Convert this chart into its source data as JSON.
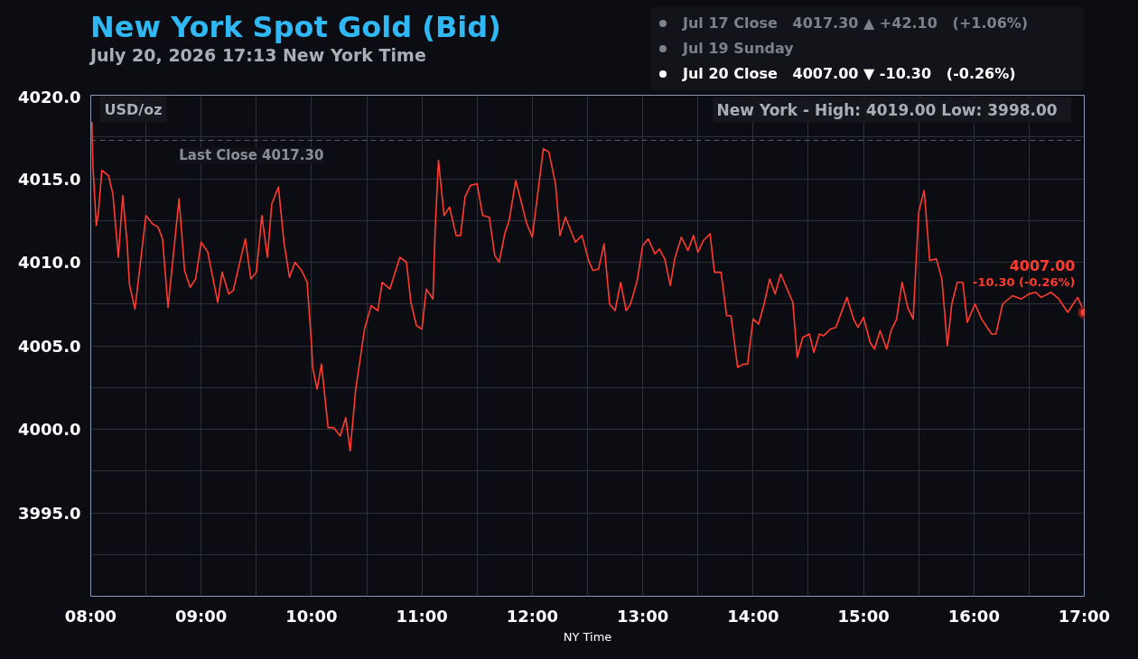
{
  "chart_data": {
    "type": "line",
    "title": "New York Spot Gold (Bid)",
    "subtitle": "July 20, 2026 17:13 New York Time",
    "xlabel": "NY Time",
    "xlim": [
      8,
      17
    ],
    "xticks": [
      {
        "value": 8,
        "label": "08:00"
      },
      {
        "value": 8.5,
        "label": null
      },
      {
        "value": 9,
        "label": "09:00"
      },
      {
        "value": 9.5,
        "label": null
      },
      {
        "value": 10,
        "label": "10:00"
      },
      {
        "value": 10.5,
        "label": null
      },
      {
        "value": 11,
        "label": "11:00"
      },
      {
        "value": 11.5,
        "label": null
      },
      {
        "value": 12,
        "label": "12:00"
      },
      {
        "value": 12.5,
        "label": null
      },
      {
        "value": 13,
        "label": "13:00"
      },
      {
        "value": 13.5,
        "label": null
      },
      {
        "value": 14,
        "label": "14:00"
      },
      {
        "value": 14.5,
        "label": null
      },
      {
        "value": 15,
        "label": "15:00"
      },
      {
        "value": 15.5,
        "label": null
      },
      {
        "value": 16,
        "label": "16:00"
      },
      {
        "value": 16.5,
        "label": null
      },
      {
        "value": 17,
        "label": "17:00"
      }
    ],
    "ylim": [
      3990,
      4020
    ],
    "yticks": [
      {
        "value": 3992.5,
        "label": null
      },
      {
        "value": 3995,
        "label": "3995.0"
      },
      {
        "value": 3997.5,
        "label": null
      },
      {
        "value": 4000,
        "label": "4000.0"
      },
      {
        "value": 4002.5,
        "label": null
      },
      {
        "value": 4005,
        "label": "4005.0"
      },
      {
        "value": 4007.5,
        "label": null
      },
      {
        "value": 4010,
        "label": "4010.0"
      },
      {
        "value": 4012.5,
        "label": null
      },
      {
        "value": 4015,
        "label": "4015.0"
      },
      {
        "value": 4017.5,
        "label": null
      },
      {
        "value": 4020,
        "label": "4020.0"
      }
    ],
    "grid": true,
    "line_style": "solid",
    "ref_lines": [
      {
        "axis": "y",
        "value": 4017.3,
        "label": "Last Close 4017.30",
        "color": "#5a5e68",
        "line_style": "dashed"
      }
    ],
    "annotations": [
      "USD/oz",
      "New York - High: 4019.00   Low: 3998.00",
      "Jul 17 Close   4017.30 ▲ +42.10   (+1.06%)",
      "Jul 19 Sunday",
      "Jul 20 Close   4007.00 ▼ -10.30   (-0.26%)",
      {
        "text": "4007.00",
        "x": 17,
        "y": 4007.0
      },
      {
        "text": "-10.30 (-0.26%)",
        "x": 17,
        "y": 4007.0
      }
    ],
    "series": [
      {
        "color": "#ff3b30",
        "x": [
          8.01,
          8.02,
          8.05,
          8.07,
          8.1,
          8.16,
          8.2,
          8.25,
          8.29,
          8.33,
          8.35,
          8.4,
          8.5,
          8.56,
          8.61,
          8.65,
          8.7,
          8.8,
          8.85,
          8.9,
          8.95,
          9.0,
          9.06,
          9.15,
          9.19,
          9.25,
          9.29,
          9.4,
          9.45,
          9.5,
          9.55,
          9.6,
          9.64,
          9.7,
          9.75,
          9.8,
          9.85,
          9.91,
          9.96,
          10.0,
          10.01,
          10.05,
          10.09,
          10.15,
          10.2,
          10.26,
          10.31,
          10.35,
          10.4,
          10.48,
          10.54,
          10.6,
          10.64,
          10.71,
          10.8,
          10.86,
          10.9,
          10.95,
          11.0,
          11.03,
          11.04,
          11.1,
          11.12,
          11.15,
          11.2,
          11.25,
          11.31,
          11.35,
          11.39,
          11.44,
          11.5,
          11.55,
          11.61,
          11.66,
          11.7,
          11.75,
          11.79,
          11.85,
          11.95,
          12.0,
          12.1,
          12.15,
          12.21,
          12.25,
          12.3,
          12.39,
          12.45,
          12.51,
          12.55,
          12.6,
          12.65,
          12.7,
          12.75,
          12.8,
          12.85,
          12.89,
          12.95,
          13.0,
          13.05,
          13.11,
          13.15,
          13.2,
          13.25,
          13.29,
          13.35,
          13.41,
          13.46,
          13.5,
          13.55,
          13.61,
          13.65,
          13.71,
          13.76,
          13.8,
          13.86,
          13.91,
          13.95,
          14.0,
          14.05,
          14.1,
          14.15,
          14.2,
          14.25,
          14.36,
          14.4,
          14.45,
          14.51,
          14.55,
          14.6,
          14.64,
          14.7,
          14.75,
          14.85,
          14.91,
          14.95,
          15.0,
          15.06,
          15.1,
          15.15,
          15.21,
          15.25,
          15.3,
          15.35,
          15.4,
          15.45,
          15.5,
          15.55,
          15.6,
          15.66,
          15.71,
          15.76,
          15.8,
          15.85,
          15.9,
          15.94,
          16.01,
          16.07,
          16.16,
          16.2,
          16.26,
          16.35,
          16.43,
          16.5,
          16.56,
          16.61,
          16.7,
          16.77,
          16.85,
          16.94,
          17.0
        ],
        "values": [
          4018.4,
          4015.7,
          4012.2,
          4013.0,
          4015.5,
          4015.2,
          4014.1,
          4010.3,
          4014.0,
          4011.1,
          4008.7,
          4007.2,
          4012.8,
          4012.3,
          4012.1,
          4011.4,
          4007.3,
          4013.8,
          4009.5,
          4008.5,
          4009.0,
          4011.2,
          4010.6,
          4007.6,
          4009.4,
          4008.1,
          4008.3,
          4011.4,
          4009.0,
          4009.4,
          4012.8,
          4010.3,
          4013.5,
          4014.5,
          4011.2,
          4009.1,
          4010.0,
          4009.5,
          4008.8,
          4005.1,
          4003.7,
          4002.4,
          4003.9,
          4000.1,
          4000.1,
          3999.6,
          4000.7,
          3998.7,
          4002.4,
          4006.0,
          4007.4,
          4007.1,
          4008.8,
          4008.4,
          4010.3,
          4010.0,
          4007.6,
          4006.2,
          4006.0,
          4007.8,
          4008.4,
          4007.8,
          4012.0,
          4016.1,
          4012.8,
          4013.3,
          4011.6,
          4011.6,
          4013.9,
          4014.6,
          4014.7,
          4012.8,
          4012.7,
          4010.4,
          4010.0,
          4011.7,
          4012.5,
          4014.9,
          4012.3,
          4011.5,
          4016.8,
          4016.6,
          4014.7,
          4011.6,
          4012.7,
          4011.2,
          4011.6,
          4010.1,
          4009.5,
          4009.6,
          4011.1,
          4007.5,
          4007.1,
          4008.8,
          4007.1,
          4007.5,
          4008.9,
          4011.0,
          4011.4,
          4010.5,
          4010.8,
          4010.2,
          4008.6,
          4010.2,
          4011.5,
          4010.7,
          4011.6,
          4010.6,
          4011.3,
          4011.7,
          4009.4,
          4009.4,
          4006.8,
          4006.8,
          4003.7,
          4003.9,
          4003.9,
          4006.6,
          4006.3,
          4007.5,
          4009.0,
          4008.1,
          4009.3,
          4007.6,
          4004.3,
          4005.5,
          4005.7,
          4004.6,
          4005.7,
          4005.6,
          4006.0,
          4006.1,
          4007.9,
          4006.6,
          4006.1,
          4006.7,
          4005.2,
          4004.8,
          4005.9,
          4004.8,
          4005.9,
          4006.6,
          4008.8,
          4007.3,
          4006.6,
          4013.0,
          4014.3,
          4010.1,
          4010.2,
          4009.0,
          4005.0,
          4007.5,
          4008.8,
          4008.8,
          4006.4,
          4007.5,
          4006.6,
          4005.7,
          4005.7,
          4007.5,
          4008.0,
          4007.8,
          4008.1,
          4008.2,
          4007.9,
          4008.2,
          4007.8,
          4007.0,
          4007.9,
          4007.0
        ]
      },
      {
        "type": "scatter",
        "marker": "circle",
        "color": "#ff3b30",
        "x": [
          17.0
        ],
        "values": [
          4007.0
        ]
      }
    ]
  }
}
